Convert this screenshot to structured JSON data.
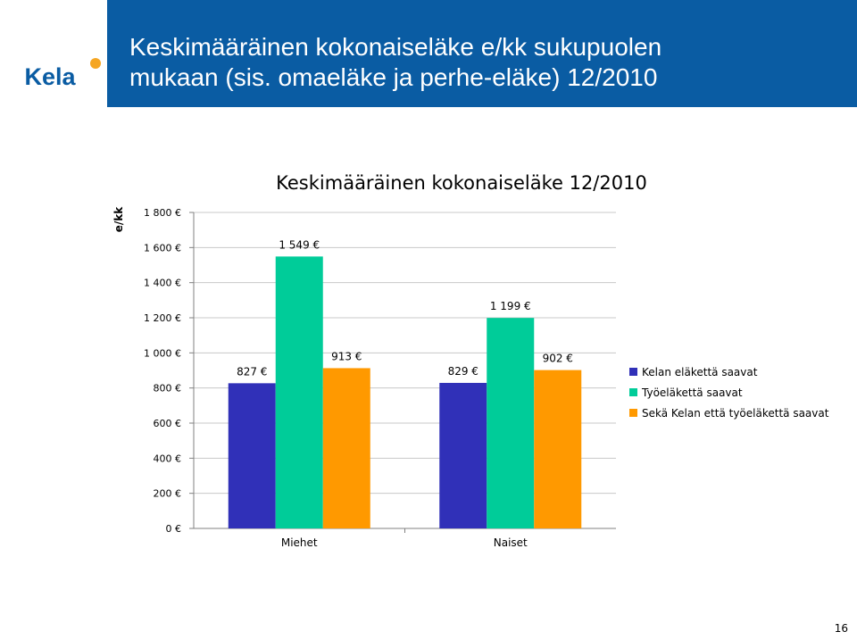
{
  "header": {
    "logo_text": "Kela",
    "title_lines": [
      "Keskimääräinen kokonaiseläke e/kk sukupuolen",
      "mukaan (sis. omaeläke ja perhe-eläke) 12/2010"
    ]
  },
  "colors": {
    "header_bg": "#0a5ca3",
    "logo_text": "#0a5ca3",
    "logo_badge": "#f5a623"
  },
  "chart_data": {
    "type": "bar",
    "title": "Keskimääräinen kokonaiseläke 12/2010",
    "ylabel": "e/kk",
    "xlabel": "",
    "ylim": [
      0,
      1800
    ],
    "yticks": [
      0,
      200,
      400,
      600,
      800,
      1000,
      1200,
      1400,
      1600,
      1800
    ],
    "ytick_labels": [
      "0 €",
      "200 €",
      "400 €",
      "600 €",
      "800 €",
      "1 000 €",
      "1 200 €",
      "1 400 €",
      "1 600 €",
      "1 800 €"
    ],
    "categories": [
      "Miehet",
      "Naiset"
    ],
    "series": [
      {
        "name": "Kelan eläkettä saavat",
        "color": "#3030b8",
        "values": [
          827,
          829
        ],
        "labels": [
          "827 €",
          "829 €"
        ]
      },
      {
        "name": "Työeläkettä saavat",
        "color": "#00cc99",
        "values": [
          1549,
          1199
        ],
        "labels": [
          "1 549 €",
          "1 199 €"
        ]
      },
      {
        "name": "Sekä Kelan että työeläkettä saavat",
        "color": "#ff9900",
        "values": [
          913,
          902
        ],
        "labels": [
          "913 €",
          "902 €"
        ]
      }
    ],
    "grid": true,
    "legend_position": "right"
  },
  "footer": {
    "page_number": "16"
  }
}
